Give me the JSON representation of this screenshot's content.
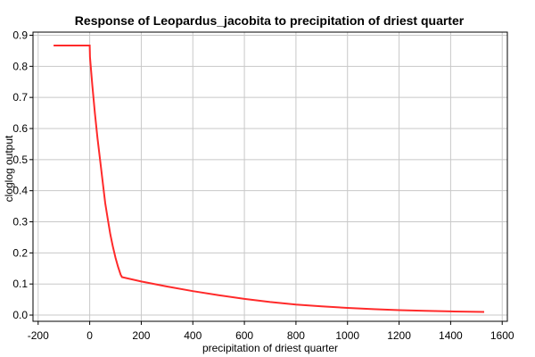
{
  "chart_data": {
    "type": "line",
    "title": "Response of Leopardus_jacobita to precipitation of driest quarter",
    "xlabel": "precipitation of driest quarter",
    "ylabel": "cloglog output",
    "xlim": [
      -220,
      1620
    ],
    "ylim": [
      -0.02,
      0.91
    ],
    "xticks": [
      -200,
      0,
      200,
      400,
      600,
      800,
      1000,
      1200,
      1400,
      1600
    ],
    "xtick_labels": [
      "-200",
      "0",
      "200",
      "400",
      "600",
      "800",
      "1000",
      "1200",
      "1400",
      "1600"
    ],
    "yticks": [
      0.0,
      0.1,
      0.2,
      0.3,
      0.4,
      0.5,
      0.6,
      0.7,
      0.8,
      0.9
    ],
    "ytick_labels": [
      "0.0",
      "0.1",
      "0.2",
      "0.3",
      "0.4",
      "0.5",
      "0.6",
      "0.7",
      "0.8",
      "0.9"
    ],
    "grid": true,
    "series": [
      {
        "color": "#ff2a2a",
        "x": [
          -140,
          0,
          1,
          10,
          20,
          30,
          40,
          50,
          60,
          70,
          80,
          90,
          100,
          110,
          120,
          125,
          200,
          300,
          400,
          500,
          600,
          700,
          800,
          900,
          1000,
          1100,
          1200,
          1300,
          1400,
          1530
        ],
        "y": [
          0.867,
          0.867,
          0.83,
          0.74,
          0.65,
          0.57,
          0.5,
          0.43,
          0.36,
          0.31,
          0.26,
          0.22,
          0.185,
          0.155,
          0.13,
          0.122,
          0.108,
          0.092,
          0.077,
          0.064,
          0.052,
          0.042,
          0.034,
          0.028,
          0.023,
          0.019,
          0.016,
          0.014,
          0.012,
          0.01
        ]
      }
    ]
  }
}
